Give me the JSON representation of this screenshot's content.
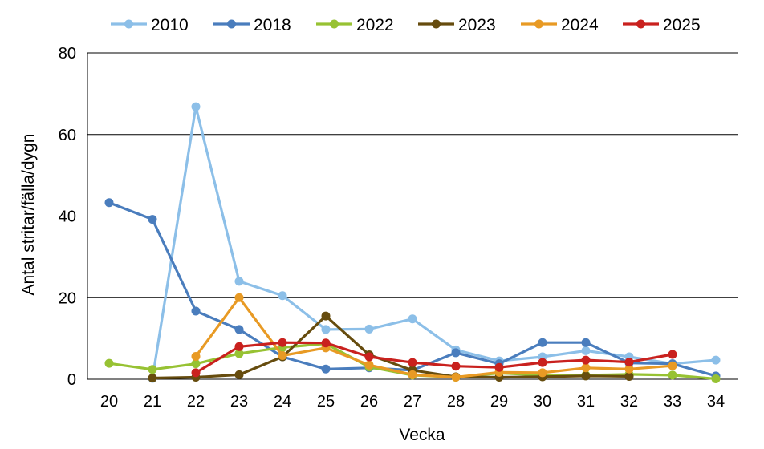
{
  "chart_data": {
    "type": "line",
    "title": "",
    "xlabel": "Vecka",
    "ylabel": "Antal stritar/fälla/dygn",
    "ylim": [
      0,
      80
    ],
    "yticks": [
      0,
      20,
      40,
      60,
      80
    ],
    "grid": "horizontal",
    "legend_position": "top",
    "x": [
      20,
      21,
      22,
      23,
      24,
      25,
      26,
      27,
      28,
      29,
      30,
      31,
      32,
      33,
      34
    ],
    "series": [
      {
        "name": "2010",
        "color": "#8cbfe8",
        "values": [
          null,
          0.2,
          66.8,
          24,
          20.5,
          12.2,
          12.3,
          14.8,
          7.2,
          4.5,
          5.5,
          7,
          5.5,
          3.8,
          4.7
        ]
      },
      {
        "name": "2018",
        "color": "#4a7dbd",
        "values": [
          43.3,
          39.2,
          16.7,
          12.2,
          5.5,
          2.5,
          2.8,
          2.2,
          6.5,
          3.8,
          9,
          9,
          4,
          3.8,
          0.8
        ]
      },
      {
        "name": "2022",
        "color": "#97c233",
        "values": [
          3.9,
          2.4,
          3.8,
          6.3,
          7.8,
          8.7,
          3,
          1,
          0.5,
          1.5,
          1,
          1,
          1.2,
          1,
          0.1
        ]
      },
      {
        "name": "2023",
        "color": "#664c0e",
        "values": [
          null,
          0.3,
          0.5,
          1.1,
          5.5,
          15.5,
          6,
          2.2,
          0.6,
          0.5,
          0.6,
          0.8,
          0.7,
          null,
          null
        ]
      },
      {
        "name": "2024",
        "color": "#e89a24",
        "values": [
          null,
          null,
          5.6,
          20,
          5.8,
          7.7,
          3.5,
          1.1,
          0.5,
          1.7,
          1.6,
          2.8,
          2.5,
          3.3,
          null
        ]
      },
      {
        "name": "2025",
        "color": "#c9211e",
        "values": [
          null,
          null,
          1.6,
          8,
          9,
          8.9,
          5.5,
          4.1,
          3.2,
          2.9,
          4.1,
          4.7,
          4.2,
          6.1,
          null
        ]
      }
    ]
  }
}
